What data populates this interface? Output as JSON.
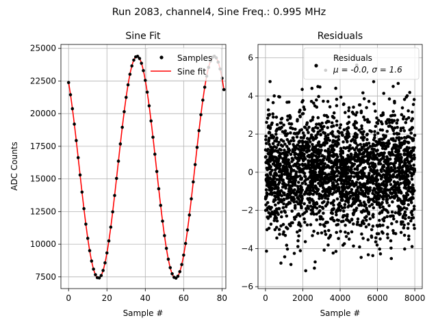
{
  "suptitle": "Run 2083, channel4, Sine Freq.: 0.995 MHz",
  "chart_data": [
    {
      "type": "line",
      "title": "Sine Fit",
      "xlabel": "Sample #",
      "ylabel": "ADC Counts",
      "xlim": [
        -4,
        82
      ],
      "ylim": [
        6600,
        25300
      ],
      "xticks": [
        0,
        20,
        40,
        60,
        80
      ],
      "yticks": [
        7500,
        10000,
        12500,
        15000,
        17500,
        20000,
        22500,
        25000
      ],
      "grid": true,
      "legend_position": "top-right",
      "model": {
        "offset": 15900,
        "amplitude": 8500,
        "period_samples": 40.2,
        "peak_sample": 35.7
      },
      "series": [
        {
          "name": "Samples",
          "kind": "markers",
          "color": "#000000",
          "x_range": [
            0,
            81
          ],
          "x_step": 1
        },
        {
          "name": "Sine fit",
          "kind": "line",
          "color": "#ff0000",
          "x_range": [
            0,
            81
          ]
        }
      ]
    },
    {
      "type": "scatter",
      "title": "Residuals",
      "xlabel": "Sample #",
      "ylabel": "",
      "xlim": [
        -400,
        8400
      ],
      "ylim": [
        -6.1,
        6.7
      ],
      "xticks": [
        0,
        2000,
        4000,
        6000,
        8000
      ],
      "yticks": [
        -6,
        -4,
        -2,
        0,
        2,
        4,
        6
      ],
      "grid": true,
      "legend_position": "top-right",
      "series": [
        {
          "name": "Residuals",
          "color": "#000000",
          "x_range": [
            0,
            8000
          ],
          "mean": 0.0,
          "std": 1.6
        }
      ],
      "legend_lines": [
        "Residuals",
        "μ = -0.0, σ = 1.6"
      ]
    }
  ]
}
